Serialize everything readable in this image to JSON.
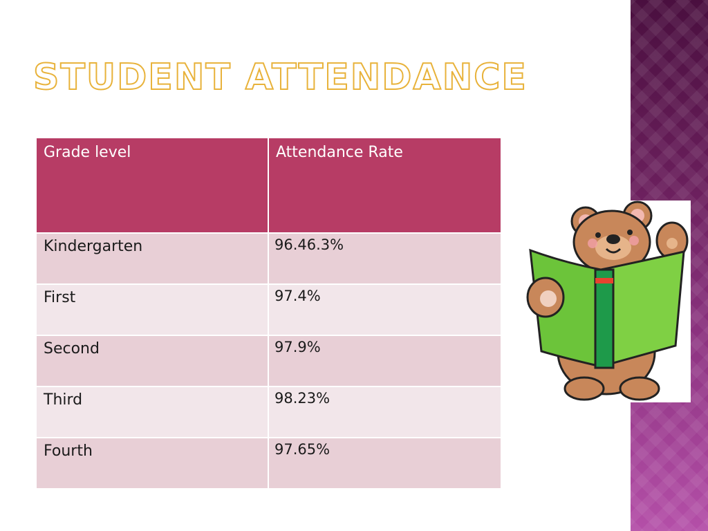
{
  "slide": {
    "title": "Student Attendance"
  },
  "table": {
    "headers": [
      "Grade level",
      "Attendance Rate"
    ],
    "rows": [
      {
        "grade": "Kindergarten",
        "rate": "96.46.3%"
      },
      {
        "grade": "First",
        "rate": "97.4%"
      },
      {
        "grade": "Second",
        "rate": "97.9%"
      },
      {
        "grade": "Third",
        "rate": "98.23%"
      },
      {
        "grade": "Fourth",
        "rate": "97.65%"
      }
    ]
  },
  "colors": {
    "title_outline": "#e8b23a",
    "header_bg": "#b73c65",
    "row_odd_bg": "#e8cfd6",
    "row_even_bg": "#f2e6ea",
    "side_strip": "#8e3482"
  },
  "illustration": {
    "icon": "bear-reading-book-icon"
  }
}
